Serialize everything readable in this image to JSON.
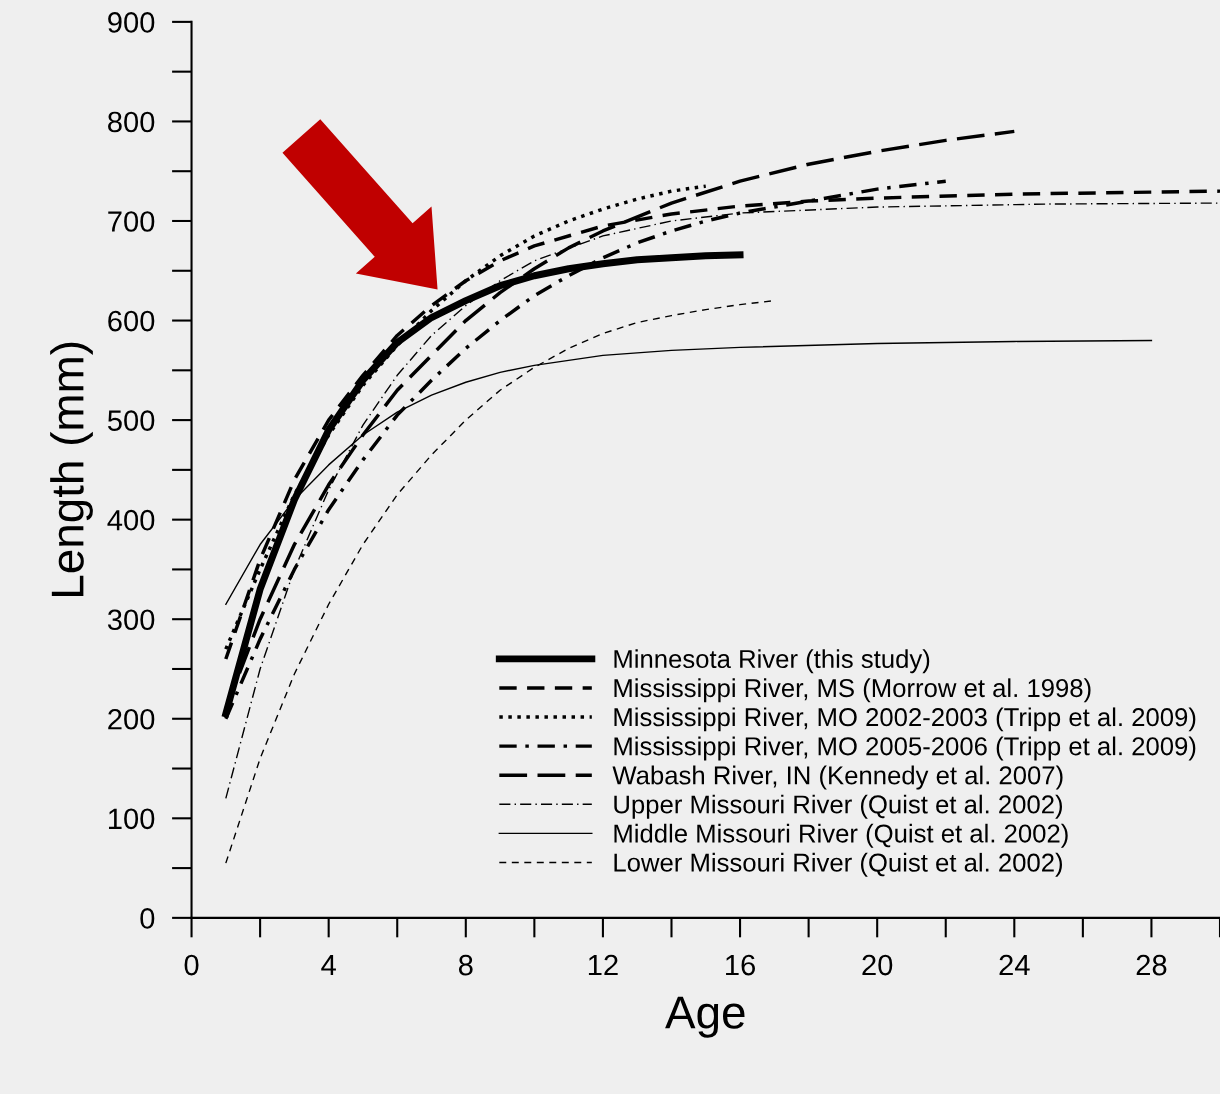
{
  "chart_data": {
    "type": "line",
    "xlabel": "Age",
    "ylabel": "Length (mm)",
    "xlim": [
      0,
      30
    ],
    "ylim": [
      0,
      900
    ],
    "xticks": [
      0,
      4,
      8,
      12,
      16,
      20,
      24,
      28
    ],
    "yticks": [
      0,
      100,
      200,
      300,
      400,
      500,
      600,
      700,
      800,
      900
    ],
    "grid": false,
    "legend": "bottom right",
    "marker": "none",
    "series": [
      {
        "name": "Minnesota River (this study)",
        "color": "#000000",
        "line_style": "solid",
        "x": [
          1,
          2,
          3,
          4,
          5,
          6,
          7,
          8,
          9,
          10,
          11,
          12,
          13,
          14,
          15,
          16
        ],
        "values": [
          205,
          330,
          420,
          490,
          540,
          578,
          603,
          620,
          635,
          645,
          652,
          657,
          661,
          663,
          665,
          666
        ]
      },
      {
        "name": "Mississippi River, MS (Morrow et al. 1998)",
        "color": "#000000",
        "line_style": "dashed",
        "x": [
          1,
          2,
          3,
          4,
          5,
          6,
          7,
          8,
          9,
          10,
          12,
          14,
          16,
          18,
          20,
          24,
          30
        ],
        "values": [
          260,
          360,
          440,
          500,
          545,
          585,
          615,
          640,
          660,
          675,
          695,
          707,
          715,
          720,
          723,
          727,
          730
        ]
      },
      {
        "name": "Mississippi River, MO 2002-2003 (Tripp et al. 2009)",
        "color": "#000000",
        "line_style": "dotted",
        "x": [
          1,
          2,
          3,
          4,
          5,
          6,
          7,
          8,
          9,
          10,
          11,
          12,
          13,
          14,
          15
        ],
        "values": [
          270,
          350,
          425,
          485,
          535,
          575,
          610,
          640,
          665,
          685,
          700,
          712,
          722,
          730,
          735
        ]
      },
      {
        "name": "Mississippi River, MO 2005-2006 (Tripp et al. 2009)",
        "color": "#000000",
        "line_style": "dashdot",
        "x": [
          1,
          2,
          3,
          4,
          5,
          6,
          7,
          8,
          9,
          10,
          11,
          12,
          13,
          14,
          15,
          16,
          18,
          20,
          22
        ],
        "values": [
          200,
          280,
          350,
          410,
          460,
          505,
          540,
          572,
          600,
          625,
          645,
          663,
          678,
          690,
          700,
          708,
          720,
          732,
          740
        ]
      },
      {
        "name": "Wabash River, IN (Kennedy et al. 2007)",
        "color": "#000000",
        "line_style": "longdash",
        "x": [
          1,
          2,
          3,
          4,
          5,
          6,
          7,
          8,
          9,
          10,
          11,
          12,
          14,
          16,
          18,
          20,
          22,
          24
        ],
        "values": [
          210,
          300,
          375,
          435,
          485,
          530,
          565,
          600,
          628,
          652,
          673,
          690,
          718,
          740,
          757,
          770,
          781,
          790
        ]
      },
      {
        "name": "Upper Missouri River (Quist et al. 2002)",
        "color": "#000000",
        "line_style": "dashdot",
        "x": [
          1,
          2,
          3,
          4,
          5,
          6,
          7,
          8,
          9,
          10,
          12,
          14,
          16,
          20,
          25,
          30
        ],
        "values": [
          120,
          250,
          350,
          430,
          495,
          545,
          585,
          615,
          640,
          660,
          685,
          700,
          708,
          714,
          717,
          718
        ]
      },
      {
        "name": "Middle Missouri River (Quist et al. 2002)",
        "color": "#000000",
        "line_style": "solid",
        "x": [
          1,
          2,
          3,
          4,
          5,
          6,
          7,
          8,
          9,
          10,
          12,
          14,
          16,
          20,
          24,
          28
        ],
        "values": [
          315,
          375,
          420,
          455,
          485,
          508,
          525,
          538,
          548,
          555,
          565,
          570,
          573,
          577,
          579,
          580
        ]
      },
      {
        "name": "Lower Missouri River (Quist et al. 2002)",
        "color": "#000000",
        "line_style": "dashed",
        "x": [
          1,
          2,
          3,
          4,
          5,
          6,
          7,
          8,
          9,
          10,
          11,
          12,
          13,
          14,
          15,
          16,
          17
        ],
        "values": [
          55,
          160,
          245,
          315,
          375,
          425,
          465,
          500,
          530,
          553,
          572,
          587,
          598,
          605,
          611,
          616,
          620
        ]
      }
    ]
  }
}
